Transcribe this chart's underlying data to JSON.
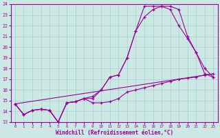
{
  "xlabel": "Windchill (Refroidissement éolien,°C)",
  "background_color": "#cce8e4",
  "grid_color": "#aacfcc",
  "line_color": "#990099",
  "xlim": [
    -0.5,
    23.5
  ],
  "ylim": [
    13,
    24
  ],
  "yticks": [
    13,
    14,
    15,
    16,
    17,
    18,
    19,
    20,
    21,
    22,
    23,
    24
  ],
  "xticks": [
    0,
    1,
    2,
    3,
    4,
    5,
    6,
    7,
    8,
    9,
    10,
    11,
    12,
    13,
    14,
    15,
    16,
    17,
    18,
    19,
    20,
    21,
    22,
    23
  ],
  "series1_x": [
    0,
    1,
    2,
    3,
    4,
    5,
    6,
    7,
    8,
    9,
    10,
    11,
    12,
    13,
    14,
    15,
    16,
    17,
    18,
    19,
    20,
    21,
    22,
    23
  ],
  "series1_y": [
    14.7,
    13.7,
    14.1,
    14.2,
    14.1,
    13.0,
    14.8,
    14.9,
    15.2,
    14.8,
    14.8,
    14.9,
    15.2,
    15.8,
    16.0,
    16.2,
    16.4,
    16.6,
    16.8,
    17.0,
    17.1,
    17.2,
    17.4,
    17.5
  ],
  "series2_x": [
    0,
    1,
    2,
    3,
    4,
    5,
    6,
    7,
    8,
    9,
    10,
    11,
    12,
    13,
    14,
    15,
    16,
    17,
    18,
    19,
    20,
    21,
    22,
    23
  ],
  "series2_y": [
    14.7,
    13.7,
    14.1,
    14.2,
    14.1,
    13.0,
    14.8,
    14.9,
    15.2,
    15.2,
    16.0,
    17.2,
    17.4,
    19.0,
    21.5,
    22.8,
    23.5,
    23.8,
    23.8,
    23.5,
    21.0,
    19.5,
    17.5,
    17.2
  ],
  "series3_x": [
    0,
    1,
    2,
    3,
    4,
    5,
    6,
    7,
    8,
    9,
    10,
    11,
    12,
    13,
    14,
    15,
    16,
    17,
    18,
    19,
    20,
    21,
    22,
    23
  ],
  "series3_y": [
    14.7,
    13.7,
    14.1,
    14.2,
    14.1,
    13.0,
    14.8,
    14.9,
    15.2,
    15.4,
    16.0,
    17.2,
    17.4,
    19.0,
    21.5,
    23.8,
    23.8,
    23.8,
    23.5,
    22.0,
    20.8,
    19.5,
    18.0,
    17.2
  ],
  "series4_x": [
    0,
    23
  ],
  "series4_y": [
    14.7,
    17.5
  ]
}
